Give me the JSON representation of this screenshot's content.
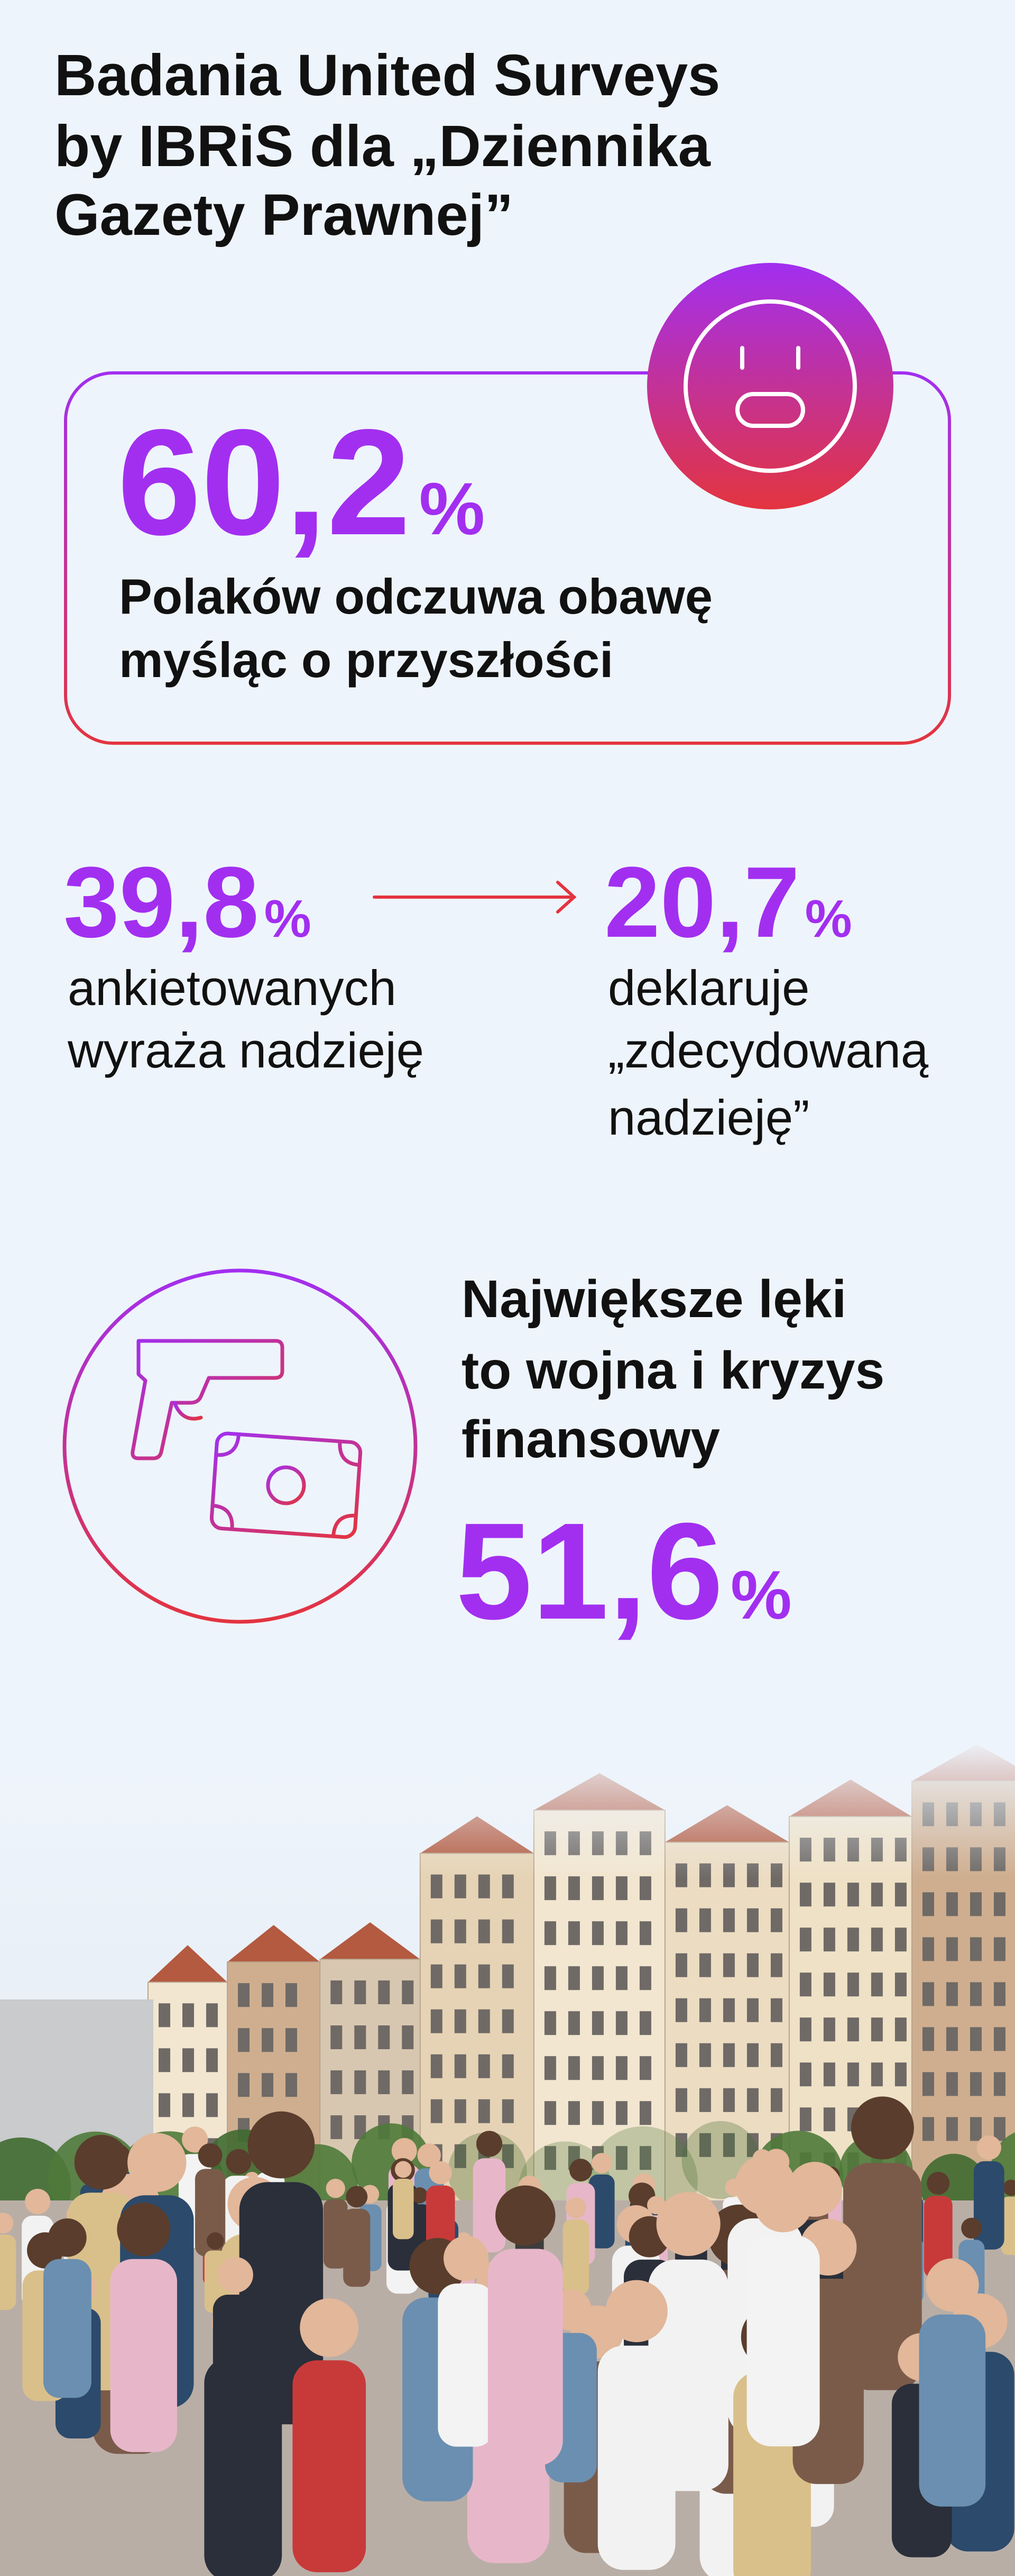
{
  "header": {
    "title_lines": [
      "Badania United Surveys",
      "by IBRiS dla „Dziennika",
      "Gazety Prawnej”"
    ]
  },
  "stats": [
    {
      "value": "60,2",
      "unit": "%",
      "text_lines": [
        "Polaków odczuwa obawę",
        "myśląc o przyszłości"
      ]
    },
    {
      "value": "39,8",
      "unit": "%",
      "text_lines": [
        "ankietowanych",
        "wyraża nadzieję"
      ]
    },
    {
      "value": "20,7",
      "unit": "%",
      "text_lines": [
        "deklaruje",
        "„zdecydowaną",
        "nadzieję”"
      ]
    },
    {
      "value": "51,6",
      "unit": "%",
      "text_lines": [
        "Największe lęki",
        "to wojna i kryzys",
        "finansowy"
      ]
    }
  ]
}
